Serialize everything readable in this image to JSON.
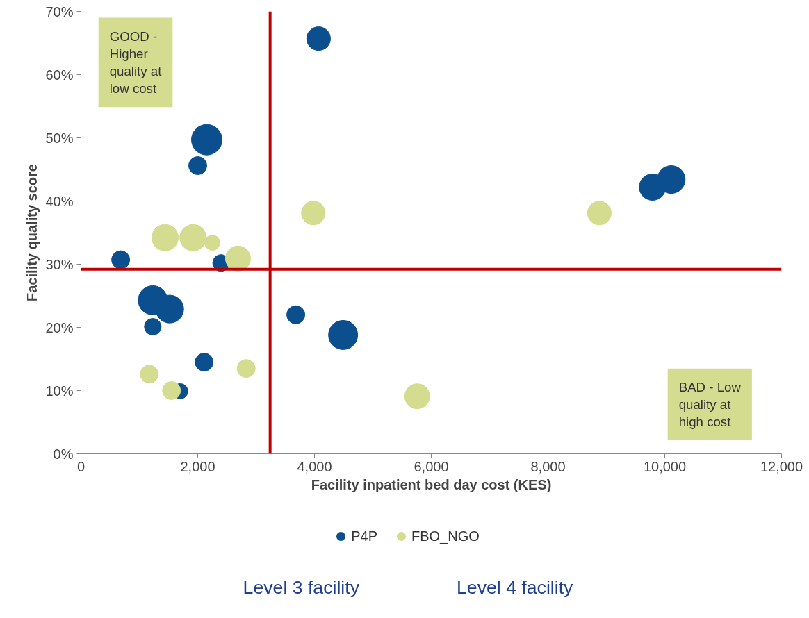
{
  "chart_data": {
    "type": "bubble",
    "xlabel": "Facility inpatient bed day cost (KES)",
    "ylabel": "Facility quality score",
    "xlim": [
      0,
      12000
    ],
    "xticks": [
      {
        "value": 0,
        "label": "0"
      },
      {
        "value": 2000,
        "label": "2,000"
      },
      {
        "value": 4000,
        "label": "4,000"
      },
      {
        "value": 6000,
        "label": "6,000"
      },
      {
        "value": 8000,
        "label": "8,000"
      },
      {
        "value": 10000,
        "label": "10,000"
      },
      {
        "value": 12000,
        "label": "12,000"
      }
    ],
    "ylim": [
      0,
      70
    ],
    "yticks": [
      {
        "value": 0,
        "label": "0%"
      },
      {
        "value": 10,
        "label": "10%"
      },
      {
        "value": 20,
        "label": "20%"
      },
      {
        "value": 30,
        "label": "30%"
      },
      {
        "value": 40,
        "label": "40%"
      },
      {
        "value": 50,
        "label": "50%"
      },
      {
        "value": 60,
        "label": "60%"
      },
      {
        "value": 70,
        "label": "70%"
      }
    ],
    "series": [
      {
        "name": "P4P",
        "color": "#0b4f8f",
        "x": [
          4070,
          2155,
          2000,
          9790,
          10110,
          680,
          2400,
          1230,
          1520,
          1230,
          3680,
          4490,
          2110,
          1700
        ],
        "values": [
          65.7,
          49.7,
          45.6,
          42.2,
          43.4,
          30.7,
          30.2,
          24.3,
          22.9,
          20.1,
          22.0,
          18.8,
          14.5,
          9.9
        ],
        "sizes": [
          0.6,
          1,
          0.35,
          0.75,
          0.83,
          0.35,
          0.3,
          0.91,
          0.83,
          0.3,
          0.35,
          0.91,
          0.35,
          0.25
        ]
      },
      {
        "name": "FBO_NGO",
        "color": "#d4dc8f",
        "x": [
          3980,
          8880,
          1440,
          1920,
          2250,
          2690,
          1170,
          2830,
          1550,
          5760
        ],
        "values": [
          38.1,
          38.1,
          34.2,
          34.2,
          33.4,
          30.9,
          12.6,
          13.5,
          10.0,
          9.1
        ],
        "sizes": [
          0.6,
          0.6,
          0.75,
          0.75,
          0.25,
          0.67,
          0.35,
          0.35,
          0.35,
          0.67
        ]
      }
    ],
    "ref_lines": [
      {
        "axis": "x",
        "value": 3240,
        "color": "#c00000"
      },
      {
        "axis": "y",
        "value": 29.2,
        "color": "#c00000"
      }
    ],
    "legend": "bottom",
    "grid": false,
    "annotations": [
      "GOOD - Higher quality at low cost",
      "BAD - Low quality at high cost",
      "Level 3 facility",
      "Level 4 facility"
    ]
  }
}
